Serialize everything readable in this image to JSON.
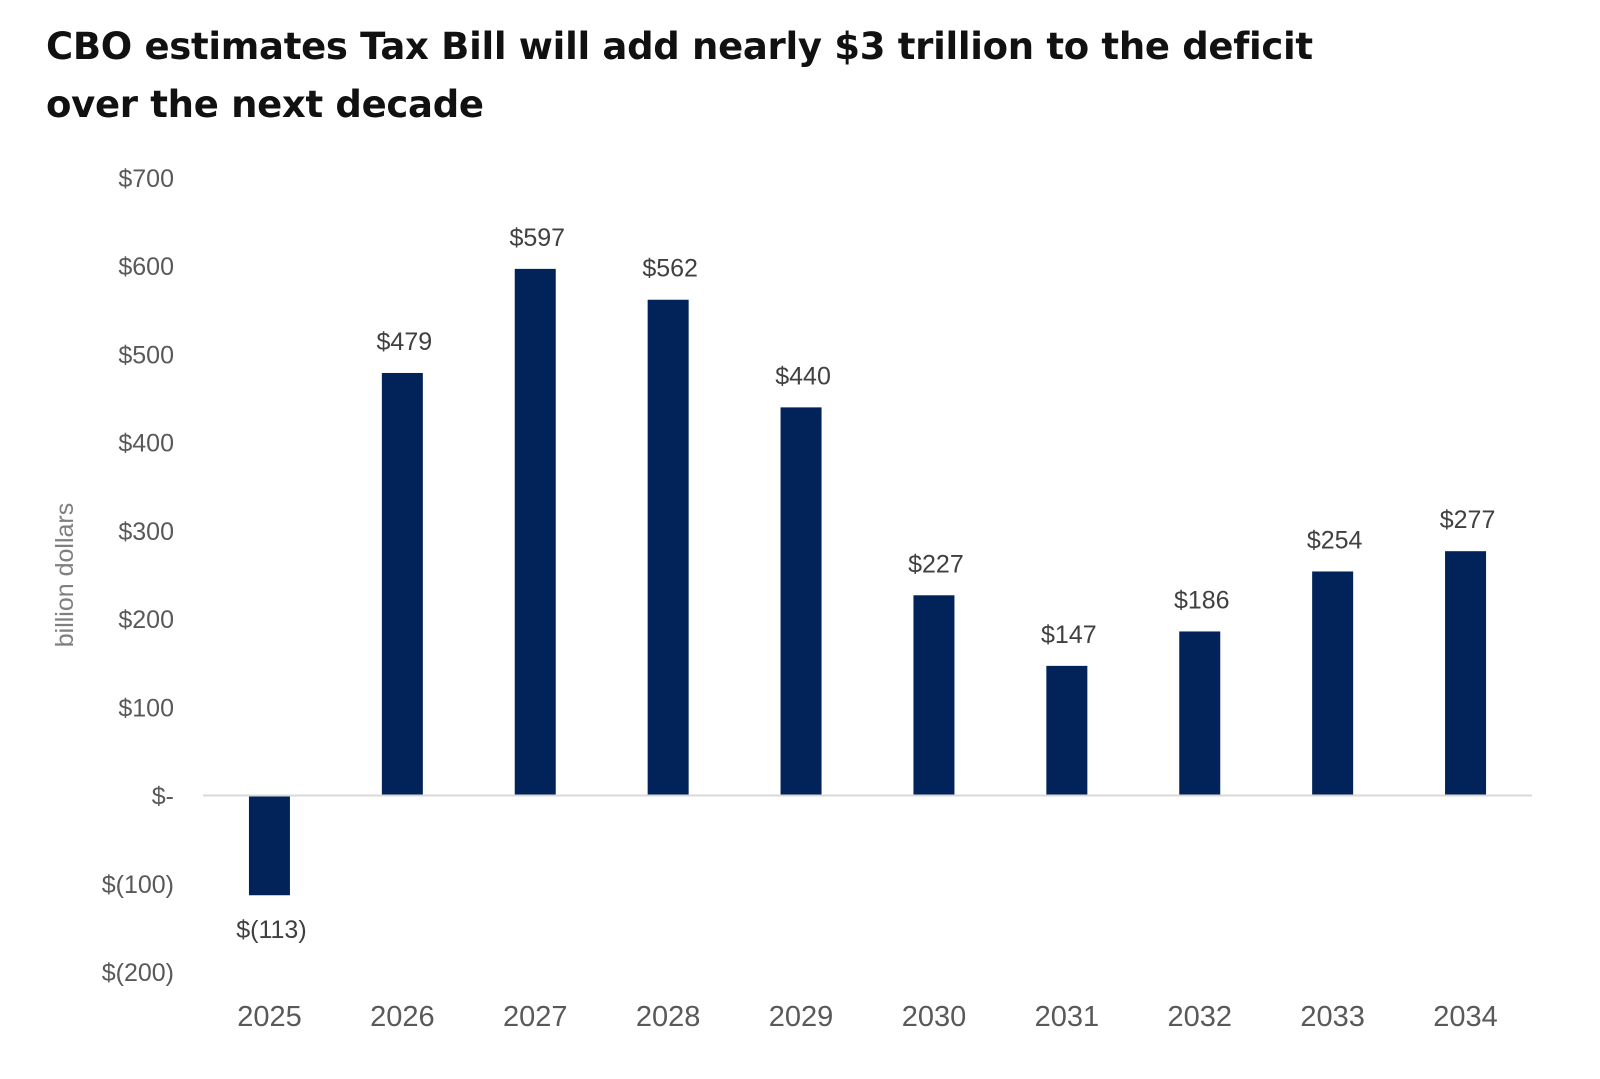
{
  "title_lines": [
    "CBO estimates Tax Bill will add nearly $3 trillion to the deficit",
    "over the next decade"
  ],
  "chart_data": {
    "type": "bar",
    "title": "CBO estimates Tax Bill will add nearly $3 trillion to the deficit over the next decade",
    "xlabel": "",
    "ylabel": "billion dollars",
    "categories": [
      "2025",
      "2026",
      "2027",
      "2028",
      "2029",
      "2030",
      "2031",
      "2032",
      "2033",
      "2034"
    ],
    "values": [
      -113,
      479,
      597,
      562,
      440,
      227,
      147,
      186,
      254,
      277
    ],
    "data_labels": [
      "$(113)",
      "$479",
      "$597",
      "$562",
      "$440",
      "$227",
      "$147",
      "$186",
      "$254",
      "$277"
    ],
    "ylim": [
      -200,
      700
    ],
    "yticks": [
      700,
      600,
      500,
      400,
      300,
      200,
      100,
      0,
      -100,
      -200
    ],
    "ytick_labels": [
      "$700",
      "$600",
      "$500",
      "$400",
      "$300",
      "$200",
      "$100",
      "$-",
      "$(100)",
      "$(200)"
    ],
    "grid": false,
    "legend": "none",
    "bar_color": "#012359",
    "baseline_color": "#d9d9d9"
  }
}
